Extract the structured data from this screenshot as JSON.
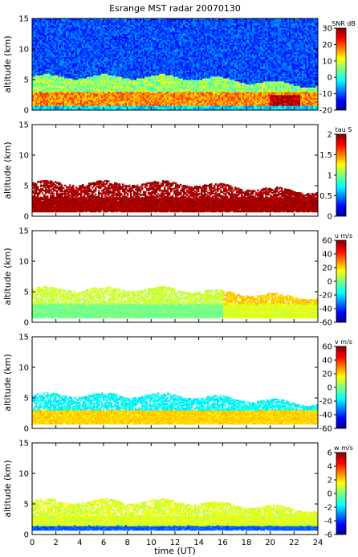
{
  "figure": {
    "title": "Esrange MST radar 20070130"
  },
  "chart_data": [
    {
      "type": "heatmap",
      "quantity": "SNR",
      "colorbar_label": "SNR dB",
      "colorbar_ticks": [
        "30",
        "20",
        "10",
        "0",
        "-10",
        "-20"
      ],
      "colorbar_range": [
        -20,
        30
      ],
      "ylabel": "altitude (km)",
      "yticks": [
        "15",
        "10",
        "5",
        "0"
      ],
      "ylim": [
        0,
        15
      ],
      "xlim": [
        0,
        24
      ],
      "coverage": "full altitude range 0-15 km, stronger echoes below ~5 km"
    },
    {
      "type": "heatmap",
      "quantity": "tau",
      "colorbar_label": "tau S",
      "colorbar_ticks": [
        "2",
        "1.5",
        "1",
        "0.5",
        "0"
      ],
      "colorbar_range": [
        0,
        2
      ],
      "ylabel": "altitude (km)",
      "yticks": [
        "15",
        "10",
        "5",
        "0"
      ],
      "ylim": [
        0,
        15
      ],
      "xlim": [
        0,
        24
      ],
      "coverage": "echoes between ~1 and ~6 km altitude"
    },
    {
      "type": "heatmap",
      "quantity": "u",
      "colorbar_label": "u m/s",
      "colorbar_ticks": [
        "60",
        "40",
        "20",
        "0",
        "-20",
        "-40",
        "-60"
      ],
      "colorbar_range": [
        -60,
        60
      ],
      "ylabel": "altitude (km)",
      "yticks": [
        "15",
        "10",
        "5",
        "0"
      ],
      "ylim": [
        0,
        15
      ],
      "xlim": [
        0,
        24
      ],
      "coverage": "echoes between ~1 and ~6 km altitude"
    },
    {
      "type": "heatmap",
      "quantity": "v",
      "colorbar_label": "v m/s",
      "colorbar_ticks": [
        "60",
        "40",
        "20",
        "0",
        "-20",
        "-40",
        "-60"
      ],
      "colorbar_range": [
        -60,
        60
      ],
      "ylabel": "altitude (km)",
      "yticks": [
        "15",
        "10",
        "5",
        "0"
      ],
      "ylim": [
        0,
        15
      ],
      "xlim": [
        0,
        24
      ],
      "coverage": "echoes between ~1 and ~6 km altitude"
    },
    {
      "type": "heatmap",
      "quantity": "w",
      "colorbar_label": "w m/s",
      "colorbar_ticks": [
        "6",
        "4",
        "2",
        "0",
        "-2",
        "-4",
        "-6"
      ],
      "colorbar_range": [
        -6,
        6
      ],
      "ylabel": "altitude (km)",
      "yticks": [
        "15",
        "10",
        "5",
        "0"
      ],
      "ylim": [
        0,
        15
      ],
      "xlim": [
        0,
        24
      ],
      "xlabel": "time (UT)",
      "xticks": [
        "0",
        "2",
        "4",
        "6",
        "8",
        "10",
        "12",
        "14",
        "16",
        "18",
        "20",
        "22",
        "24"
      ],
      "coverage": "echoes between ~1 and ~6 km altitude"
    }
  ]
}
